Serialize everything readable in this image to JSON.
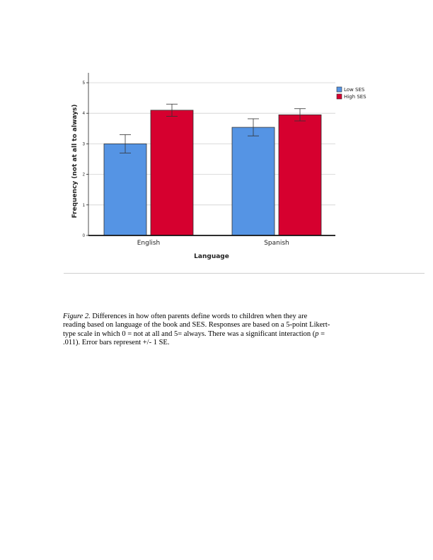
{
  "chart_data": {
    "type": "bar",
    "categories": [
      "English",
      "Spanish"
    ],
    "series": [
      {
        "name": "Low SES",
        "color": "#5594e4",
        "values": [
          3.0,
          3.54
        ],
        "error": [
          0.3,
          0.28
        ]
      },
      {
        "name": "High SES",
        "color": "#d6002f",
        "values": [
          4.1,
          3.95
        ],
        "error": [
          0.2,
          0.2
        ]
      }
    ],
    "xlabel": "Language",
    "ylabel": "Frequency (not at all to always)",
    "ylim": [
      0,
      5
    ],
    "yticks": [
      "0",
      "1",
      "2",
      "3",
      "4",
      "5"
    ],
    "grid": true,
    "legend_position": "top-right",
    "error_bars": "+/- 1 SE"
  },
  "caption": {
    "figure_label": "Figure 2.",
    "text_line1": " Differences in how often parents define words to children when they are",
    "text_line2": "reading based on language of the book and SES. Responses are based on a 5-point Likert-",
    "text_line3": "type scale in which 0 = not at all and 5= always. There was a significant interaction (",
    "p_symbol": "p",
    "text_line3_end": " =",
    "text_line4": ".011). Error bars represent +/- 1 SE."
  }
}
